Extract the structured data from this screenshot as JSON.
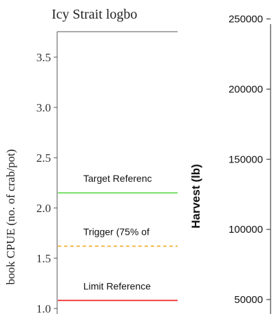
{
  "chart_data": [
    {
      "type": "line",
      "title": "Icy Strait logbo",
      "ylabel": "book CPUE (no. of crab/pot)",
      "ylim": [
        1.0,
        3.8
      ],
      "yticks": [
        {
          "value": 1.0,
          "label": "1.0"
        },
        {
          "value": 1.5,
          "label": "1.5"
        },
        {
          "value": 2.0,
          "label": "2.0"
        },
        {
          "value": 2.5,
          "label": "2.5"
        },
        {
          "value": 3.0,
          "label": "3.0"
        },
        {
          "value": 3.5,
          "label": "3.5"
        }
      ],
      "reference_lines": [
        {
          "name": "Target Referenc",
          "value": 2.15,
          "color": "#66dd55",
          "style": "solid"
        },
        {
          "name": "Trigger (75% of",
          "value": 1.62,
          "color": "#f0b030",
          "style": "dashed"
        },
        {
          "name": "Limit Reference",
          "value": 1.08,
          "color": "#ee3333",
          "style": "solid"
        }
      ]
    },
    {
      "type": "bar",
      "title": "",
      "ylabel": "Harvest (lb)",
      "ylim": [
        45000,
        250000
      ],
      "yticks": [
        {
          "value": 50000,
          "label": "50000"
        },
        {
          "value": 100000,
          "label": "100000"
        },
        {
          "value": 150000,
          "label": "150000"
        },
        {
          "value": 200000,
          "label": "200000"
        },
        {
          "value": 250000,
          "label": "250000"
        }
      ]
    }
  ]
}
